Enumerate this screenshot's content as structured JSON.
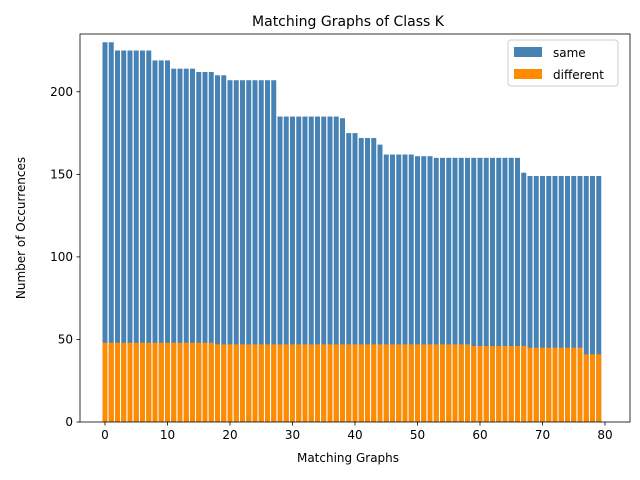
{
  "chart_data": {
    "type": "bar",
    "stacked": false,
    "overlay": true,
    "title": "Matching Graphs of Class K",
    "xlabel": "Matching Graphs",
    "ylabel": "Number of Occurrences",
    "xlim": [
      -4,
      84
    ],
    "ylim": [
      0,
      235
    ],
    "xticks": [
      0,
      10,
      20,
      30,
      40,
      50,
      60,
      70,
      80
    ],
    "yticks": [
      0,
      50,
      100,
      150,
      200
    ],
    "grid": false,
    "legend_position": "top-right",
    "x": [
      0,
      1,
      2,
      3,
      4,
      5,
      6,
      7,
      8,
      9,
      10,
      11,
      12,
      13,
      14,
      15,
      16,
      17,
      18,
      19,
      20,
      21,
      22,
      23,
      24,
      25,
      26,
      27,
      28,
      29,
      30,
      31,
      32,
      33,
      34,
      35,
      36,
      37,
      38,
      39,
      40,
      41,
      42,
      43,
      44,
      45,
      46,
      47,
      48,
      49,
      50,
      51,
      52,
      53,
      54,
      55,
      56,
      57,
      58,
      59,
      60,
      61,
      62,
      63,
      64,
      65,
      66,
      67,
      68,
      69,
      70,
      71,
      72,
      73,
      74,
      75,
      76,
      77,
      78,
      79
    ],
    "series": [
      {
        "name": "same",
        "color": "#4682b4",
        "values": [
          230,
          230,
          225,
          225,
          225,
          225,
          225,
          225,
          219,
          219,
          219,
          214,
          214,
          214,
          214,
          212,
          212,
          212,
          210,
          210,
          207,
          207,
          207,
          207,
          207,
          207,
          207,
          207,
          185,
          185,
          185,
          185,
          185,
          185,
          185,
          185,
          185,
          185,
          184,
          175,
          175,
          172,
          172,
          172,
          168,
          162,
          162,
          162,
          162,
          162,
          161,
          161,
          161,
          160,
          160,
          160,
          160,
          160,
          160,
          160,
          160,
          160,
          160,
          160,
          160,
          160,
          160,
          151,
          149,
          149,
          149,
          149,
          149,
          149,
          149,
          149,
          149,
          149,
          149,
          149
        ]
      },
      {
        "name": "different",
        "color": "#ff8c00",
        "values": [
          48,
          48,
          48,
          48,
          48,
          48,
          48,
          48,
          48,
          48,
          48,
          48,
          48,
          48,
          48,
          48,
          48,
          48,
          47,
          47,
          47,
          47,
          47,
          47,
          47,
          47,
          47,
          47,
          47,
          47,
          47,
          47,
          47,
          47,
          47,
          47,
          47,
          47,
          47,
          47,
          47,
          47,
          47,
          47,
          47,
          47,
          47,
          47,
          47,
          47,
          47,
          47,
          47,
          47,
          47,
          47,
          47,
          47,
          47,
          46,
          46,
          46,
          46,
          46,
          46,
          46,
          46,
          46,
          45,
          45,
          45,
          45,
          45,
          45,
          45,
          45,
          45,
          41,
          41,
          41
        ]
      }
    ]
  }
}
